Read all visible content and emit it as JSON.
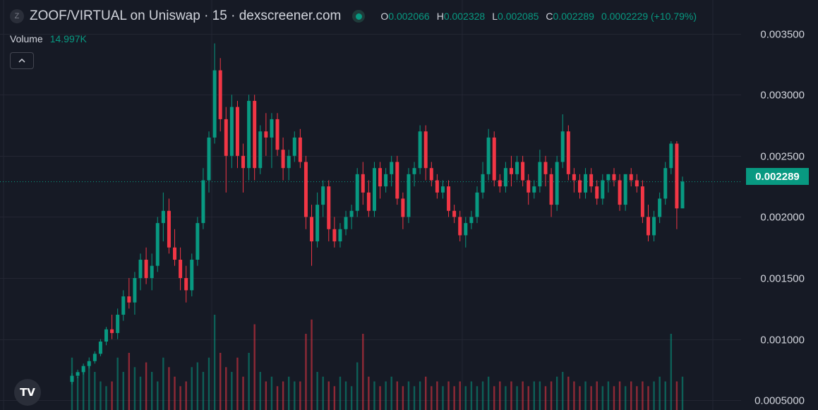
{
  "header": {
    "symbol_badge": "Z",
    "title": "ZOOF/VIRTUAL on Uniswap · 15 · dexscreener.com",
    "status_icon": "live-dot-icon",
    "ohlc": {
      "o_label": "O",
      "o_value": "0.002066",
      "h_label": "H",
      "h_value": "0.002328",
      "l_label": "L",
      "l_value": "0.002085",
      "c_label": "C",
      "c_value": "0.002289",
      "change": "0.0002229 (+10.79%)"
    }
  },
  "volume": {
    "label": "Volume",
    "value": "14.997K"
  },
  "collapse_icon": "chevron-up-icon",
  "logo": {
    "icon": "tradingview-logo-icon",
    "text": "TV"
  },
  "price_tag": "0.002289",
  "colors": {
    "background": "#161a25",
    "up": "#089981",
    "down": "#f23645",
    "grid": "#232632",
    "axis_text": "#d1d4dc"
  },
  "chart_data": {
    "type": "candlestick",
    "interval": "15",
    "y_ticks": [
      "0.003500",
      "0.003000",
      "0.002500",
      "0.002000",
      "0.001500",
      "0.001000",
      "0.0005000"
    ],
    "ylim": [
      0.00042,
      0.00366
    ],
    "last_price": 0.002289,
    "grid": true,
    "candles": [
      [
        0.00065,
        0.00072,
        0.00063,
        0.0007
      ],
      [
        0.0007,
        0.00075,
        0.00068,
        0.00073
      ],
      [
        0.00073,
        0.0008,
        0.00071,
        0.00078
      ],
      [
        0.00078,
        0.00085,
        0.00076,
        0.00082
      ],
      [
        0.00082,
        0.0009,
        0.0008,
        0.00088
      ],
      [
        0.00088,
        0.001,
        0.00086,
        0.00098
      ],
      [
        0.00098,
        0.0011,
        0.00095,
        0.00108
      ],
      [
        0.00108,
        0.0012,
        0.001,
        0.00105
      ],
      [
        0.00105,
        0.00125,
        0.001,
        0.0012
      ],
      [
        0.0012,
        0.0014,
        0.00115,
        0.00135
      ],
      [
        0.00135,
        0.0015,
        0.00125,
        0.0013
      ],
      [
        0.0013,
        0.00155,
        0.0012,
        0.0015
      ],
      [
        0.0015,
        0.0017,
        0.0014,
        0.00165
      ],
      [
        0.00165,
        0.00175,
        0.00145,
        0.0015
      ],
      [
        0.0015,
        0.0017,
        0.0014,
        0.0016
      ],
      [
        0.0016,
        0.002,
        0.00155,
        0.00195
      ],
      [
        0.00195,
        0.0022,
        0.0018,
        0.00205
      ],
      [
        0.00205,
        0.00215,
        0.0017,
        0.00175
      ],
      [
        0.00175,
        0.0019,
        0.0016,
        0.00165
      ],
      [
        0.00165,
        0.00175,
        0.0014,
        0.0015
      ],
      [
        0.0015,
        0.0016,
        0.0013,
        0.0014
      ],
      [
        0.0014,
        0.0017,
        0.00135,
        0.00165
      ],
      [
        0.00165,
        0.002,
        0.0016,
        0.00195
      ],
      [
        0.00195,
        0.0024,
        0.0019,
        0.0023
      ],
      [
        0.0023,
        0.0027,
        0.0022,
        0.00265
      ],
      [
        0.00265,
        0.00342,
        0.0026,
        0.0032
      ],
      [
        0.0032,
        0.0033,
        0.0027,
        0.0028
      ],
      [
        0.0028,
        0.0029,
        0.0022,
        0.0025
      ],
      [
        0.0025,
        0.003,
        0.0024,
        0.0029
      ],
      [
        0.0029,
        0.00295,
        0.0024,
        0.0025
      ],
      [
        0.0025,
        0.0026,
        0.0022,
        0.0024
      ],
      [
        0.0024,
        0.003,
        0.0023,
        0.00295
      ],
      [
        0.00295,
        0.003,
        0.0023,
        0.0024
      ],
      [
        0.0024,
        0.00275,
        0.00235,
        0.0027
      ],
      [
        0.0027,
        0.00285,
        0.0025,
        0.00265
      ],
      [
        0.00265,
        0.00285,
        0.0024,
        0.0028
      ],
      [
        0.0028,
        0.00285,
        0.0025,
        0.00255
      ],
      [
        0.00255,
        0.00265,
        0.0023,
        0.0024
      ],
      [
        0.0024,
        0.00255,
        0.0023,
        0.0025
      ],
      [
        0.0025,
        0.0027,
        0.00245,
        0.00265
      ],
      [
        0.00265,
        0.00272,
        0.0024,
        0.00245
      ],
      [
        0.00245,
        0.0025,
        0.0019,
        0.002
      ],
      [
        0.002,
        0.0021,
        0.0016,
        0.0018
      ],
      [
        0.0018,
        0.0022,
        0.00175,
        0.0021
      ],
      [
        0.0021,
        0.0023,
        0.002,
        0.00225
      ],
      [
        0.00225,
        0.0023,
        0.0018,
        0.0019
      ],
      [
        0.0019,
        0.002,
        0.00175,
        0.0018
      ],
      [
        0.0018,
        0.00195,
        0.00175,
        0.0019
      ],
      [
        0.0019,
        0.00205,
        0.00185,
        0.002
      ],
      [
        0.002,
        0.0021,
        0.0019,
        0.00205
      ],
      [
        0.00205,
        0.0024,
        0.002,
        0.00235
      ],
      [
        0.00235,
        0.00245,
        0.0021,
        0.0022
      ],
      [
        0.0022,
        0.0023,
        0.002,
        0.00205
      ],
      [
        0.00205,
        0.00245,
        0.002,
        0.0024
      ],
      [
        0.0024,
        0.00245,
        0.00215,
        0.00225
      ],
      [
        0.00225,
        0.0024,
        0.0022,
        0.00235
      ],
      [
        0.00235,
        0.0025,
        0.00225,
        0.00245
      ],
      [
        0.00245,
        0.0025,
        0.0021,
        0.00215
      ],
      [
        0.00215,
        0.0022,
        0.0019,
        0.002
      ],
      [
        0.002,
        0.0024,
        0.00195,
        0.00235
      ],
      [
        0.00235,
        0.00245,
        0.00225,
        0.0024
      ],
      [
        0.0024,
        0.00275,
        0.00235,
        0.0027
      ],
      [
        0.0027,
        0.00275,
        0.0023,
        0.0024
      ],
      [
        0.0024,
        0.00245,
        0.00225,
        0.0023
      ],
      [
        0.0023,
        0.00235,
        0.00215,
        0.0022
      ],
      [
        0.0022,
        0.0023,
        0.00215,
        0.00225
      ],
      [
        0.00225,
        0.0023,
        0.002,
        0.00205
      ],
      [
        0.00205,
        0.0021,
        0.00195,
        0.002
      ],
      [
        0.002,
        0.00205,
        0.0018,
        0.00185
      ],
      [
        0.00185,
        0.002,
        0.00175,
        0.00195
      ],
      [
        0.00195,
        0.00205,
        0.0019,
        0.002
      ],
      [
        0.002,
        0.00225,
        0.00195,
        0.0022
      ],
      [
        0.0022,
        0.00245,
        0.00215,
        0.00235
      ],
      [
        0.00235,
        0.00272,
        0.0023,
        0.00265
      ],
      [
        0.00265,
        0.0027,
        0.00225,
        0.0023
      ],
      [
        0.0023,
        0.00235,
        0.0022,
        0.00225
      ],
      [
        0.00225,
        0.00245,
        0.0022,
        0.0024
      ],
      [
        0.0024,
        0.0025,
        0.00225,
        0.00235
      ],
      [
        0.00235,
        0.0025,
        0.0023,
        0.00245
      ],
      [
        0.00245,
        0.0025,
        0.00225,
        0.0023
      ],
      [
        0.0023,
        0.00235,
        0.0021,
        0.0022
      ],
      [
        0.0022,
        0.0023,
        0.00215,
        0.00225
      ],
      [
        0.00225,
        0.00255,
        0.0022,
        0.00245
      ],
      [
        0.00245,
        0.0025,
        0.00225,
        0.00235
      ],
      [
        0.00235,
        0.0024,
        0.002,
        0.0021
      ],
      [
        0.0021,
        0.0025,
        0.00205,
        0.00245
      ],
      [
        0.00245,
        0.00284,
        0.0024,
        0.0027
      ],
      [
        0.0027,
        0.00275,
        0.0023,
        0.00235
      ],
      [
        0.00235,
        0.0024,
        0.0022,
        0.0023
      ],
      [
        0.0023,
        0.00235,
        0.00215,
        0.0022
      ],
      [
        0.0022,
        0.0024,
        0.00215,
        0.00235
      ],
      [
        0.00235,
        0.0024,
        0.0022,
        0.00225
      ],
      [
        0.00225,
        0.0023,
        0.0021,
        0.00215
      ],
      [
        0.00215,
        0.00235,
        0.0021,
        0.0023
      ],
      [
        0.0023,
        0.00235,
        0.0022,
        0.00235
      ],
      [
        0.00235,
        0.0024,
        0.00225,
        0.0023
      ],
      [
        0.0023,
        0.00235,
        0.00205,
        0.0021
      ],
      [
        0.0021,
        0.00235,
        0.00205,
        0.00235
      ],
      [
        0.00235,
        0.0024,
        0.00225,
        0.0023
      ],
      [
        0.0023,
        0.00235,
        0.0022,
        0.00225
      ],
      [
        0.00225,
        0.0023,
        0.00195,
        0.002
      ],
      [
        0.002,
        0.0021,
        0.0018,
        0.00185
      ],
      [
        0.00185,
        0.00205,
        0.0018,
        0.002
      ],
      [
        0.002,
        0.0022,
        0.00195,
        0.00215
      ],
      [
        0.00215,
        0.00245,
        0.0021,
        0.0024
      ],
      [
        0.0024,
        0.00262,
        0.00235,
        0.0026
      ],
      [
        0.0026,
        0.00262,
        0.0019,
        0.00207
      ],
      [
        0.00207,
        0.00233,
        0.00209,
        0.00229
      ]
    ],
    "volume": [
      0.55,
      0.35,
      0.45,
      0.5,
      0.4,
      0.3,
      0.25,
      0.3,
      0.55,
      0.4,
      0.6,
      0.45,
      0.35,
      0.5,
      0.4,
      0.3,
      0.55,
      0.45,
      0.35,
      0.25,
      0.3,
      0.45,
      0.5,
      0.4,
      0.55,
      1.0,
      0.6,
      0.45,
      0.4,
      0.55,
      0.35,
      0.6,
      0.9,
      0.4,
      0.3,
      0.35,
      0.25,
      0.3,
      0.35,
      0.3,
      0.3,
      0.8,
      0.95,
      0.4,
      0.35,
      0.3,
      0.25,
      0.35,
      0.3,
      0.25,
      0.5,
      0.8,
      0.35,
      0.3,
      0.25,
      0.3,
      0.35,
      0.3,
      0.25,
      0.3,
      0.25,
      0.3,
      0.35,
      0.25,
      0.3,
      0.25,
      0.3,
      0.25,
      0.3,
      0.25,
      0.3,
      0.25,
      0.3,
      0.35,
      0.25,
      0.3,
      0.25,
      0.3,
      0.25,
      0.3,
      0.25,
      0.3,
      0.3,
      0.25,
      0.3,
      0.35,
      0.4,
      0.35,
      0.3,
      0.25,
      0.3,
      0.25,
      0.3,
      0.25,
      0.3,
      0.25,
      0.3,
      0.25,
      0.3,
      0.25,
      0.3,
      0.25,
      0.3,
      0.35,
      0.3,
      0.8,
      0.3,
      0.35
    ]
  }
}
